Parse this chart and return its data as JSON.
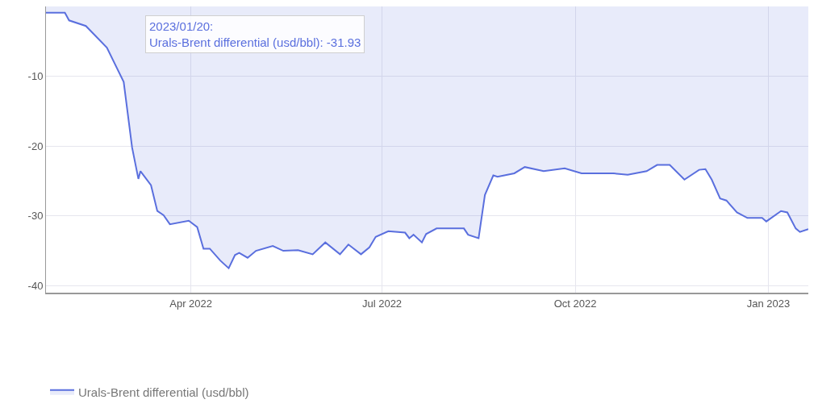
{
  "chart_data": {
    "type": "area",
    "xlim": [
      "2022-01-22",
      "2023-01-20"
    ],
    "ylim": [
      -41,
      0
    ],
    "xticks": [
      {
        "value": "2022-04-01",
        "label": "Apr 2022"
      },
      {
        "value": "2022-07-01",
        "label": "Jul 2022"
      },
      {
        "value": "2022-10-01",
        "label": "Oct 2022"
      },
      {
        "value": "2023-01-01",
        "label": "Jan 2023"
      }
    ],
    "yticks": [
      -10,
      -20,
      -30,
      -40
    ],
    "grid": true,
    "legend": "bottom left",
    "marker": "none",
    "line_style": "solid",
    "annotations": [
      "2023/01/20:\nUrals-Brent differential (usd/bbl): -31.93"
    ],
    "series": [
      {
        "name": "Urals-Brent differential (usd/bbl)",
        "color": "#5a6fde",
        "x": [
          "2022-01-22",
          "2022-01-31",
          "2022-02-02",
          "2022-02-10",
          "2022-02-20",
          "2022-02-28",
          "2022-03-04",
          "2022-03-07",
          "2022-03-08",
          "2022-03-13",
          "2022-03-16",
          "2022-03-19",
          "2022-03-22",
          "2022-03-31",
          "2022-04-04",
          "2022-04-07",
          "2022-04-10",
          "2022-04-15",
          "2022-04-19",
          "2022-04-22",
          "2022-04-24",
          "2022-04-28",
          "2022-05-02",
          "2022-05-10",
          "2022-05-15",
          "2022-05-22",
          "2022-05-29",
          "2022-06-04",
          "2022-06-11",
          "2022-06-15",
          "2022-06-21",
          "2022-06-25",
          "2022-06-28",
          "2022-07-04",
          "2022-07-12",
          "2022-07-14",
          "2022-07-16",
          "2022-07-20",
          "2022-07-22",
          "2022-07-27",
          "2022-08-09",
          "2022-08-11",
          "2022-08-16",
          "2022-08-19",
          "2022-08-23",
          "2022-08-25",
          "2022-09-02",
          "2022-09-07",
          "2022-09-16",
          "2022-09-26",
          "2022-10-04",
          "2022-10-19",
          "2022-10-26",
          "2022-11-04",
          "2022-11-09",
          "2022-11-15",
          "2022-11-22",
          "2022-11-29",
          "2022-12-02",
          "2022-12-05",
          "2022-12-09",
          "2022-12-12",
          "2022-12-17",
          "2022-12-22",
          "2022-12-29",
          "2022-12-31",
          "2023-01-07",
          "2023-01-10",
          "2023-01-14",
          "2023-01-16",
          "2023-01-20"
        ],
        "values": [
          -0.9,
          -0.9,
          -2.0,
          -2.8,
          -5.9,
          -10.8,
          -20.2,
          -24.7,
          -23.6,
          -25.6,
          -29.3,
          -29.9,
          -31.2,
          -30.7,
          -31.6,
          -34.7,
          -34.7,
          -36.4,
          -37.5,
          -35.6,
          -35.3,
          -36.0,
          -35.0,
          -34.3,
          -35.0,
          -34.9,
          -35.5,
          -33.8,
          -35.5,
          -34.1,
          -35.5,
          -34.5,
          -33.0,
          -32.2,
          -32.4,
          -33.2,
          -32.7,
          -33.8,
          -32.6,
          -31.8,
          -31.8,
          -32.7,
          -33.2,
          -27.0,
          -24.2,
          -24.4,
          -23.9,
          -23.0,
          -23.6,
          -23.2,
          -23.9,
          -23.9,
          -24.1,
          -23.6,
          -22.7,
          -22.7,
          -24.8,
          -23.4,
          -23.3,
          -24.8,
          -27.5,
          -27.8,
          -29.5,
          -30.3,
          -30.3,
          -30.8,
          -29.3,
          -29.5,
          -31.8,
          -32.3,
          -31.9
        ]
      }
    ]
  }
}
